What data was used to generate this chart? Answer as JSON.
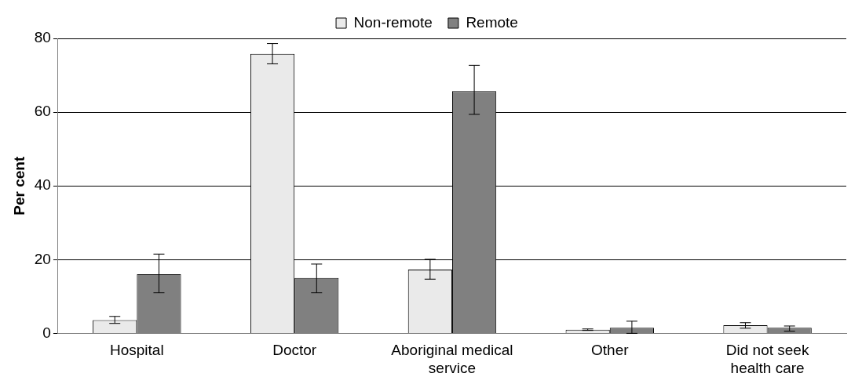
{
  "chart_data": {
    "type": "bar",
    "ylabel": "Per cent",
    "categories": [
      "Hospital",
      "Doctor",
      "Aboriginal medical service",
      "Other",
      "Did not seek health care"
    ],
    "series": [
      {
        "name": "Non-remote",
        "color": "#eaeaea",
        "values": [
          3.6,
          75.8,
          17.3,
          1.0,
          2.2
        ],
        "errors": [
          [
            2.7,
            4.6
          ],
          [
            73.1,
            78.6
          ],
          [
            14.7,
            20.1
          ],
          [
            0.8,
            1.2
          ],
          [
            1.4,
            2.9
          ]
        ]
      },
      {
        "name": "Remote",
        "color": "#808080",
        "values": [
          16.0,
          15.0,
          65.7,
          1.5,
          1.5
        ],
        "errors": [
          [
            11.0,
            21.5
          ],
          [
            11.0,
            18.8
          ],
          [
            59.4,
            72.7
          ],
          [
            0,
            3.3
          ],
          [
            0.6,
            2.0
          ]
        ]
      }
    ],
    "ylim": [
      0,
      80
    ],
    "yticks": [
      0,
      20,
      40,
      60,
      80
    ],
    "grid": "y",
    "legend": "top"
  }
}
